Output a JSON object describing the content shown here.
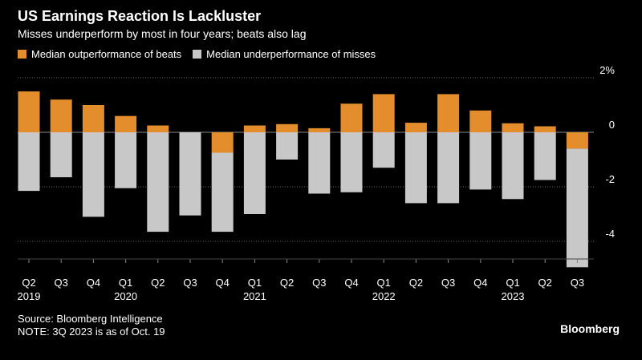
{
  "header": {
    "title": "US Earnings Reaction Is Lackluster",
    "subtitle": "Misses underperform by most in four years; beats also lag"
  },
  "legend": {
    "beats_label": "Median outperformance of beats",
    "misses_label": "Median underperformance of misses"
  },
  "colors": {
    "beats": "#e38d2c",
    "misses": "#c8c8c8",
    "background": "#000000",
    "grid": "#666666",
    "text": "#ffffff"
  },
  "footer": {
    "source": "Source: Bloomberg Intelligence",
    "note": "NOTE: 3Q 2023 is as of Oct. 19",
    "brand": "Bloomberg"
  },
  "chart_data": {
    "type": "bar",
    "title": "US Earnings Reaction Is Lackluster",
    "subtitle": "Misses underperform by most in four years; beats also lag",
    "xlabel": "",
    "ylabel": "",
    "ylim": [
      -4.4,
      2
    ],
    "y_ticks": [
      2,
      0,
      -2,
      -4
    ],
    "y_tick_labels": [
      "2%",
      "0",
      "-2",
      "-4"
    ],
    "grid": true,
    "stacked_diverging": true,
    "categories": [
      "Q2",
      "Q3",
      "Q4",
      "Q1",
      "Q2",
      "Q3",
      "Q4",
      "Q1",
      "Q2",
      "Q3",
      "Q4",
      "Q1",
      "Q2",
      "Q3",
      "Q4",
      "Q1",
      "Q2",
      "Q3"
    ],
    "year_labels": [
      {
        "index": 0,
        "label": "2019"
      },
      {
        "index": 3,
        "label": "2020"
      },
      {
        "index": 7,
        "label": "2021"
      },
      {
        "index": 11,
        "label": "2022"
      },
      {
        "index": 15,
        "label": "2023"
      }
    ],
    "series": [
      {
        "name": "Median outperformance of beats",
        "values": [
          1.5,
          1.2,
          1.0,
          0.6,
          0.25,
          0.0,
          -0.75,
          0.25,
          0.3,
          0.15,
          1.05,
          1.4,
          0.35,
          1.4,
          0.8,
          0.33,
          0.22,
          -0.6
        ]
      },
      {
        "name": "Median underperformance of misses",
        "values": [
          -2.15,
          -1.65,
          -3.1,
          -2.05,
          -3.65,
          -3.05,
          -2.9,
          -3.0,
          -1.0,
          -2.25,
          -2.2,
          -1.3,
          -2.6,
          -2.6,
          -2.1,
          -2.45,
          -1.75,
          -4.35
        ]
      }
    ]
  }
}
